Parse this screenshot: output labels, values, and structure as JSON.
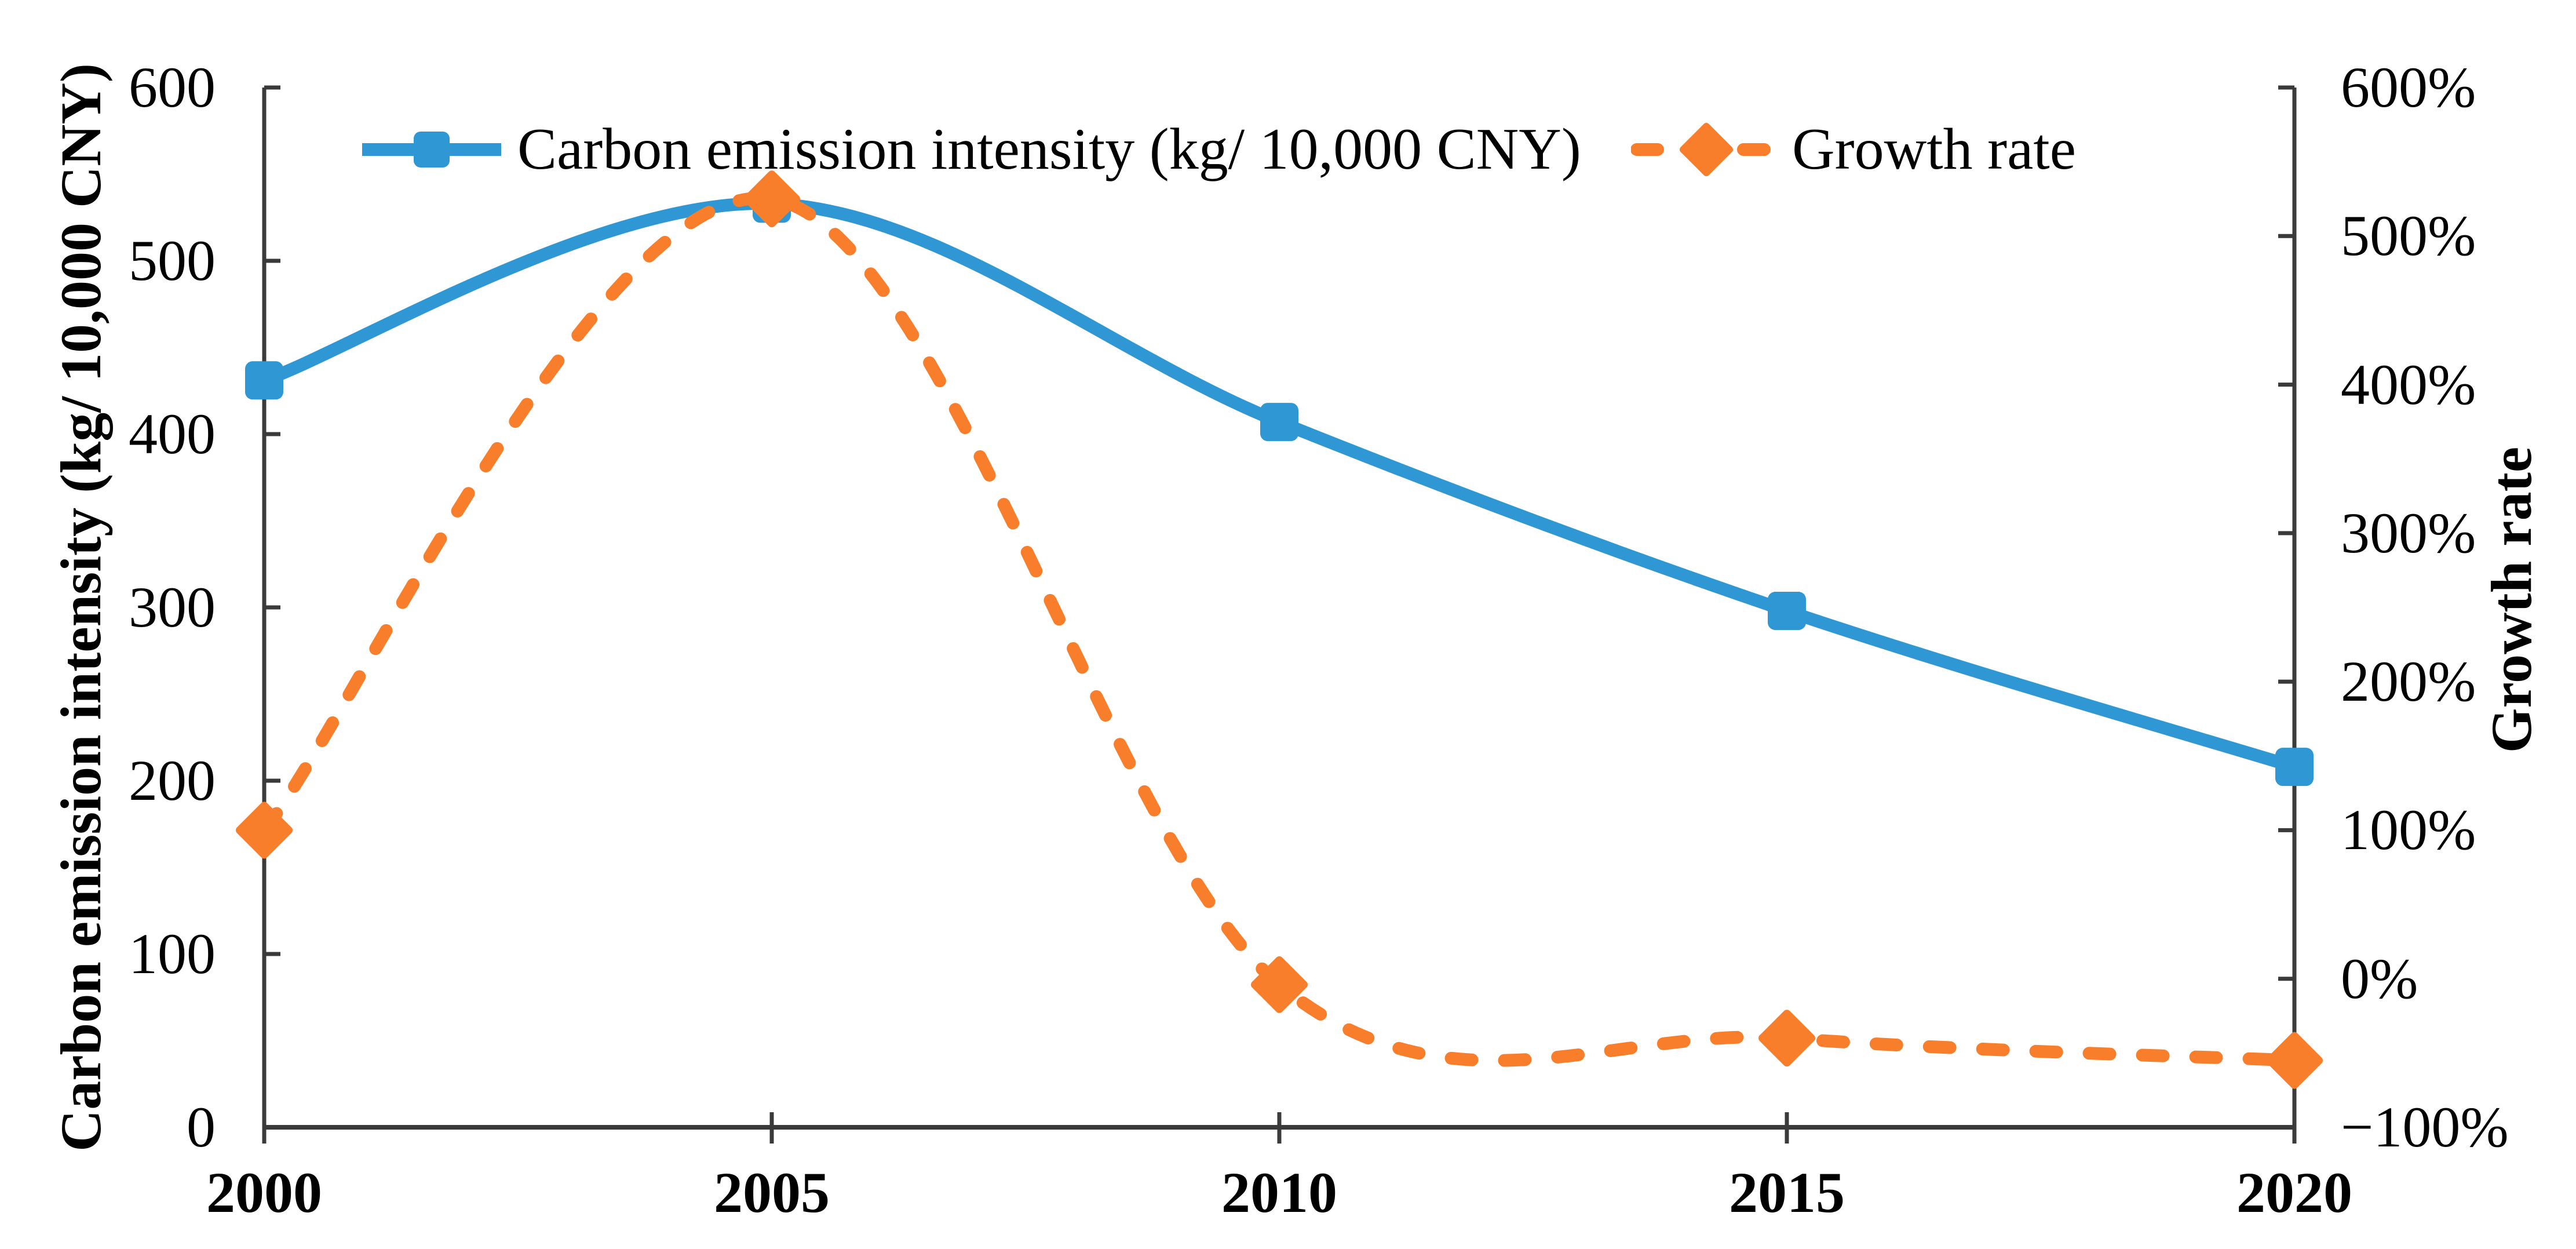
{
  "page": {
    "background": "#FFFFFF"
  },
  "chart_data": {
    "type": "line",
    "title": "",
    "x": [
      2000,
      2005,
      2010,
      2015,
      2020
    ],
    "x_tick_labels": [
      "2000",
      "2005",
      "2010",
      "2015",
      "2020"
    ],
    "series": [
      {
        "name": "Carbon emission intensity (kg/ 10,000 CNY)",
        "axis": "left",
        "color": "#2E97D4",
        "line_style": "solid",
        "marker": "rounded-square",
        "values": [
          431,
          533,
          407,
          298,
          208
        ]
      },
      {
        "name": "Growth rate",
        "axis": "right",
        "color": "#F87E2B",
        "line_style": "dashed",
        "marker": "diamond",
        "unit": "%",
        "values": [
          100,
          525,
          -4,
          -40,
          -55
        ]
      }
    ],
    "left_axis": {
      "title": "Carbon emission intensity (kg/ 10,000 CNY)",
      "min": 0,
      "max": 600,
      "tick_values": [
        0,
        100,
        200,
        300,
        400,
        500,
        600
      ],
      "tick_labels": [
        "0",
        "100",
        "200",
        "300",
        "400",
        "500",
        "600"
      ]
    },
    "right_axis": {
      "title": "Growth rate",
      "min": -100,
      "max": 600,
      "tick_values": [
        -100,
        0,
        100,
        200,
        300,
        400,
        500,
        600
      ],
      "tick_labels": [
        "−100%",
        "0%",
        "100%",
        "200%",
        "300%",
        "400%",
        "500%",
        "600%"
      ]
    },
    "legend": {
      "position": "top",
      "items": [
        {
          "label": "Carbon emission intensity (kg/ 10,000 CNY)"
        },
        {
          "label": "Growth rate"
        }
      ]
    },
    "grid": false,
    "axis_color": "#3A3A3A",
    "text_color": "#000000"
  }
}
